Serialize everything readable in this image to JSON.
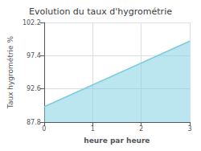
{
  "chart_data": {
    "type": "area",
    "title": "Evolution du taux d'hygrométrie",
    "x_label": "heure par heure",
    "y_label": "Taux hygrométrie %",
    "x": [
      0,
      3
    ],
    "values": [
      90.0,
      99.5
    ],
    "color": "#7acde0",
    "xlim": [
      0,
      3
    ],
    "xticks": [
      0,
      1,
      2,
      3
    ],
    "ylim": [
      87.8,
      102.2
    ],
    "yticks": [
      87.8,
      92.6,
      97.4,
      102.2
    ],
    "grid": true
  }
}
